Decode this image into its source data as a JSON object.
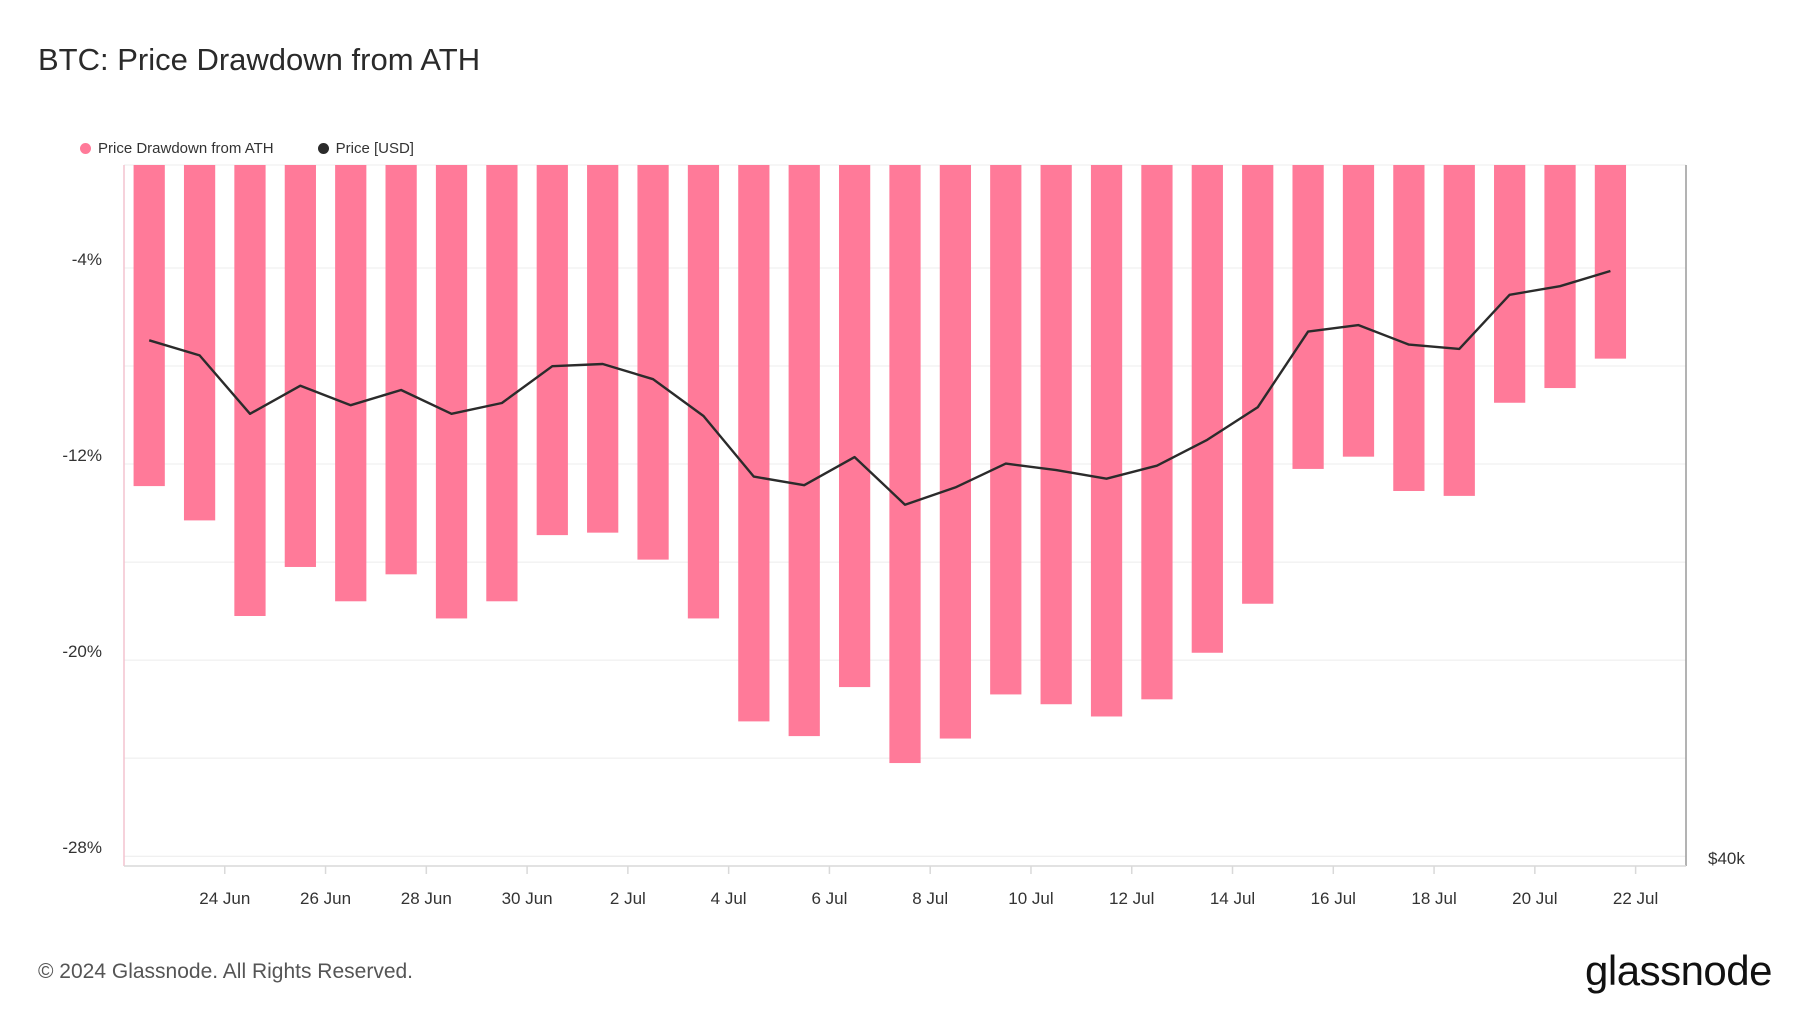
{
  "title": "BTC: Price Drawdown from ATH",
  "footer": "© 2024 Glassnode. All Rights Reserved.",
  "brand": "glassnode",
  "colors": {
    "bar": "#ff7a99",
    "line": "#2b2b2b",
    "grid": "#ececec",
    "axis": "#d9d9d9"
  },
  "chart_data": {
    "type": "bar",
    "title": "BTC: Price Drawdown from ATH",
    "legend": [
      {
        "name": "Price Drawdown from ATH",
        "color": "#ff7a99"
      },
      {
        "name": "Price [USD]",
        "color": "#2b2b2b"
      }
    ],
    "legend_position": "top-left",
    "grid": true,
    "x": [
      "2024-06-22",
      "2024-06-23",
      "2024-06-24",
      "2024-06-25",
      "2024-06-26",
      "2024-06-27",
      "2024-06-28",
      "2024-06-29",
      "2024-06-30",
      "2024-07-01",
      "2024-07-02",
      "2024-07-03",
      "2024-07-04",
      "2024-07-05",
      "2024-07-06",
      "2024-07-07",
      "2024-07-08",
      "2024-07-09",
      "2024-07-10",
      "2024-07-11",
      "2024-07-12",
      "2024-07-13",
      "2024-07-14",
      "2024-07-15",
      "2024-07-16",
      "2024-07-17",
      "2024-07-18",
      "2024-07-19",
      "2024-07-20",
      "2024-07-21"
    ],
    "x_tick_labels": [
      "24 Jun",
      "26 Jun",
      "28 Jun",
      "30 Jun",
      "2 Jul",
      "4 Jul",
      "6 Jul",
      "8 Jul",
      "10 Jul",
      "12 Jul",
      "14 Jul",
      "16 Jul",
      "18 Jul",
      "20 Jul",
      "22 Jul"
    ],
    "x_tick_dates": [
      "2024-06-24",
      "2024-06-26",
      "2024-06-28",
      "2024-06-30",
      "2024-07-02",
      "2024-07-04",
      "2024-07-06",
      "2024-07-08",
      "2024-07-10",
      "2024-07-12",
      "2024-07-14",
      "2024-07-16",
      "2024-07-18",
      "2024-07-20",
      "2024-07-22"
    ],
    "x_range": [
      "2024-06-22",
      "2024-07-23"
    ],
    "left_axis": {
      "tick_labels": [
        "-4%",
        "-12%",
        "-20%",
        "-28%"
      ],
      "tick_values": [
        -4,
        -12,
        -20,
        -28
      ],
      "range": [
        -28.4,
        0.2
      ]
    },
    "right_axis": {
      "tick_labels": [
        "$40k"
      ],
      "tick_values": [
        40000
      ]
    },
    "series": [
      {
        "name": "Price Drawdown from ATH",
        "type": "bar",
        "axis": "left",
        "values": [
          -12.9,
          -14.3,
          -18.2,
          -16.2,
          -17.6,
          -16.5,
          -18.3,
          -17.6,
          -14.9,
          -14.8,
          -15.9,
          -18.3,
          -22.5,
          -23.1,
          -21.1,
          -24.2,
          -23.2,
          -21.4,
          -21.8,
          -22.3,
          -21.6,
          -19.7,
          -17.7,
          -12.2,
          -11.7,
          -13.1,
          -13.3,
          -9.5,
          -8.9,
          -7.7
        ]
      },
      {
        "name": "Price [USD]",
        "type": "line",
        "axis": "right",
        "values": [
          64300,
          63600,
          60900,
          62200,
          61300,
          62000,
          60900,
          61400,
          63100,
          63200,
          62500,
          60800,
          58000,
          57600,
          58900,
          56700,
          57500,
          58600,
          58300,
          57900,
          58500,
          59700,
          61200,
          64700,
          65000,
          64100,
          63900,
          66400,
          66800,
          67500
        ]
      }
    ]
  }
}
